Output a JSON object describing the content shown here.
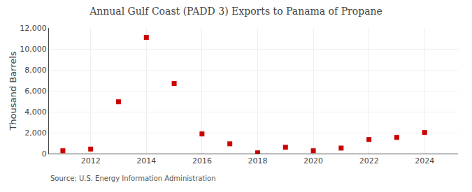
{
  "chart_data": {
    "type": "scatter",
    "title": "Annual Gulf Coast (PADD 3) Exports to Panama of Propane",
    "ylabel": "Thousand Barrels",
    "annotations": [
      "Source: U.S. Energy Information Administration"
    ],
    "x": [
      2011,
      2012,
      2013,
      2014,
      2015,
      2016,
      2017,
      2018,
      2019,
      2020,
      2021,
      2022,
      2023,
      2024
    ],
    "values": [
      280,
      430,
      4950,
      11100,
      6700,
      1880,
      940,
      80,
      600,
      280,
      530,
      1350,
      1550,
      2020
    ],
    "color": "#cc0000",
    "marker": "square",
    "xlim": [
      2010.5,
      2025.2
    ],
    "xticks": [
      2012,
      2014,
      2016,
      2018,
      2020,
      2022,
      2024
    ],
    "ylim": [
      0,
      12000
    ],
    "yticks": [
      0,
      {
        "value": 2000,
        "label": "2,000"
      },
      {
        "value": 4000,
        "label": "4,000"
      },
      {
        "value": 6000,
        "label": "6,000"
      },
      {
        "value": 8000,
        "label": "8,000"
      },
      {
        "value": 10000,
        "label": "10,000"
      },
      {
        "value": 12000,
        "label": "12,000"
      }
    ],
    "grid": true
  }
}
